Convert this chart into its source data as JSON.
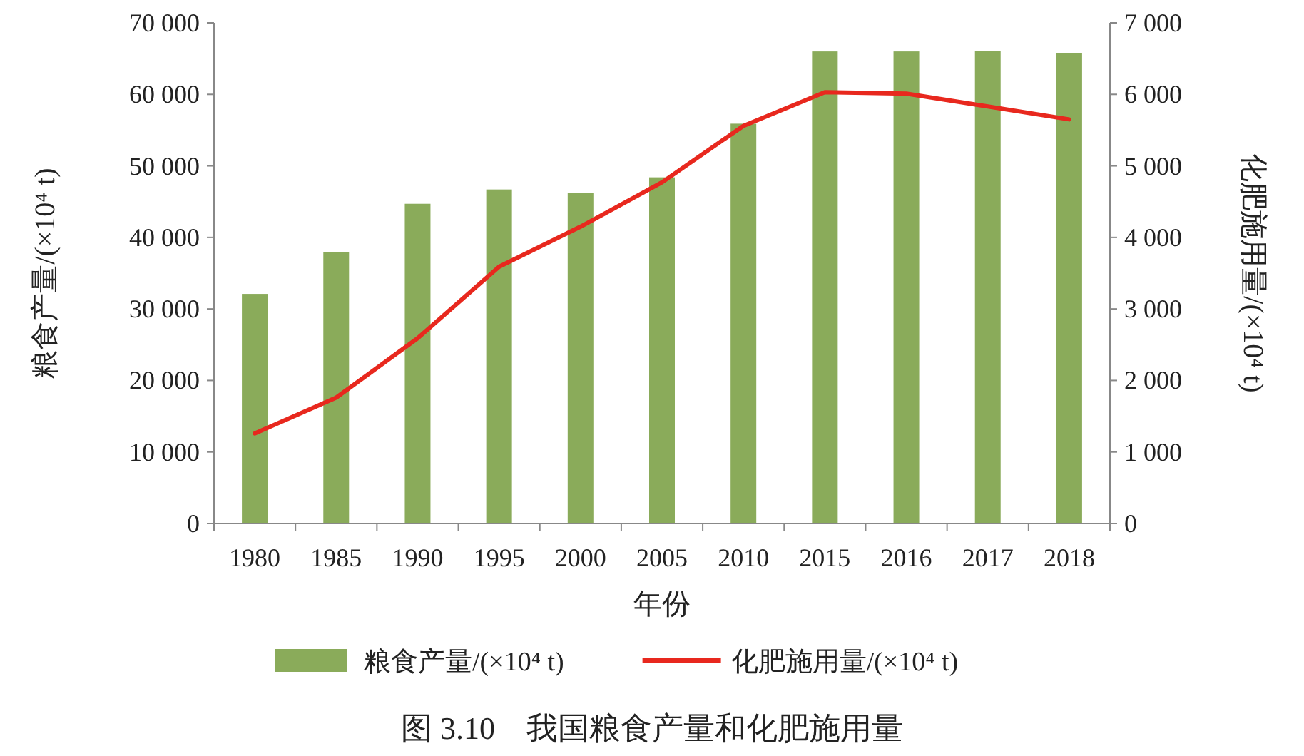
{
  "chart_data": {
    "type": "bar",
    "xlabel": "年份",
    "ylabel": "粮食产量/(×10⁴ t)",
    "y2label": "化肥施用量/(×10⁴ t)",
    "categories": [
      "1980",
      "1985",
      "1990",
      "1995",
      "2000",
      "2005",
      "2010",
      "2015",
      "2016",
      "2017",
      "2018"
    ],
    "series": [
      {
        "name": "粮食产量/(×10⁴ t)",
        "color": "#8aab5a",
        "values": [
          32100,
          37900,
          44700,
          46700,
          46200,
          48400,
          55900,
          66000,
          66000,
          66100,
          65800
        ]
      },
      {
        "name": "化肥施用量/(×10⁴ t)",
        "type": "line",
        "axis": "y2",
        "color": "#e8281e",
        "values": [
          1260,
          1760,
          2590,
          3590,
          4150,
          4770,
          5560,
          6030,
          6010,
          5830,
          5650
        ]
      }
    ],
    "ylim": [
      0,
      70000
    ],
    "yticks": [
      0,
      {
        "value": 10000,
        "label": "10 000"
      },
      {
        "value": 20000,
        "label": "20 000"
      },
      {
        "value": 30000,
        "label": "30 000"
      },
      {
        "value": 40000,
        "label": "40 000"
      },
      {
        "value": 50000,
        "label": "50 000"
      },
      {
        "value": 60000,
        "label": "60 000"
      },
      {
        "value": 70000,
        "label": "70 000"
      }
    ],
    "y2lim": [
      0,
      7000
    ],
    "y2ticks": [
      0,
      {
        "value": 1000,
        "label": "1 000"
      },
      {
        "value": 2000,
        "label": "2 000"
      },
      {
        "value": 3000,
        "label": "3 000"
      },
      {
        "value": 4000,
        "label": "4 000"
      },
      {
        "value": 5000,
        "label": "5 000"
      },
      {
        "value": 6000,
        "label": "6 000"
      },
      {
        "value": 7000,
        "label": "7 000"
      }
    ],
    "legend": "bottom",
    "annotations": [
      "图 3.10　我国粮食产量和化肥施用量"
    ]
  }
}
